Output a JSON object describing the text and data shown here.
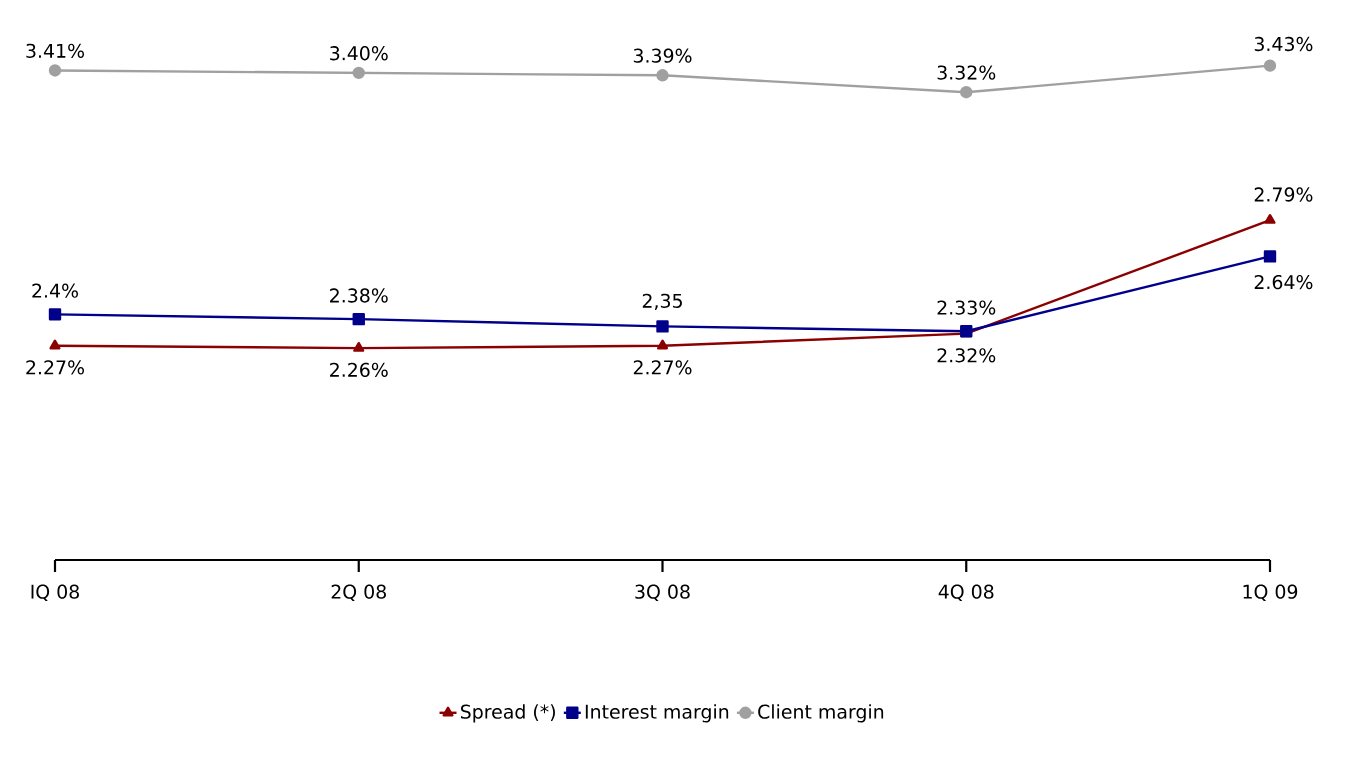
{
  "chart_data": {
    "type": "line",
    "categories": [
      "IQ 08",
      "2Q 08",
      "3Q 08",
      "4Q 08",
      "1Q 09"
    ],
    "series": [
      {
        "name": "Spread (*)",
        "color": "#8b0000",
        "marker": "triangle",
        "values": [
          2.27,
          2.26,
          2.27,
          2.32,
          2.79
        ],
        "value_labels": [
          "2.27%",
          "2.26%",
          "2.27%",
          "2.32%",
          "2.79%"
        ]
      },
      {
        "name": "Interest margin",
        "color": "#00008b",
        "marker": "square",
        "values": [
          2.4,
          2.38,
          2.35,
          2.33,
          2.64
        ],
        "value_labels": [
          "2.4%",
          "2.38%",
          "2,35",
          "2.33%",
          "2.64%"
        ]
      },
      {
        "name": "Client margin",
        "color": "#a0a0a0",
        "marker": "circle",
        "values": [
          3.41,
          3.4,
          3.39,
          3.32,
          3.43
        ],
        "value_labels": [
          "3.41%",
          "3.40%",
          "3.39%",
          "3.32%",
          "3.43%"
        ]
      }
    ],
    "legend": "bottom",
    "grid": false
  }
}
